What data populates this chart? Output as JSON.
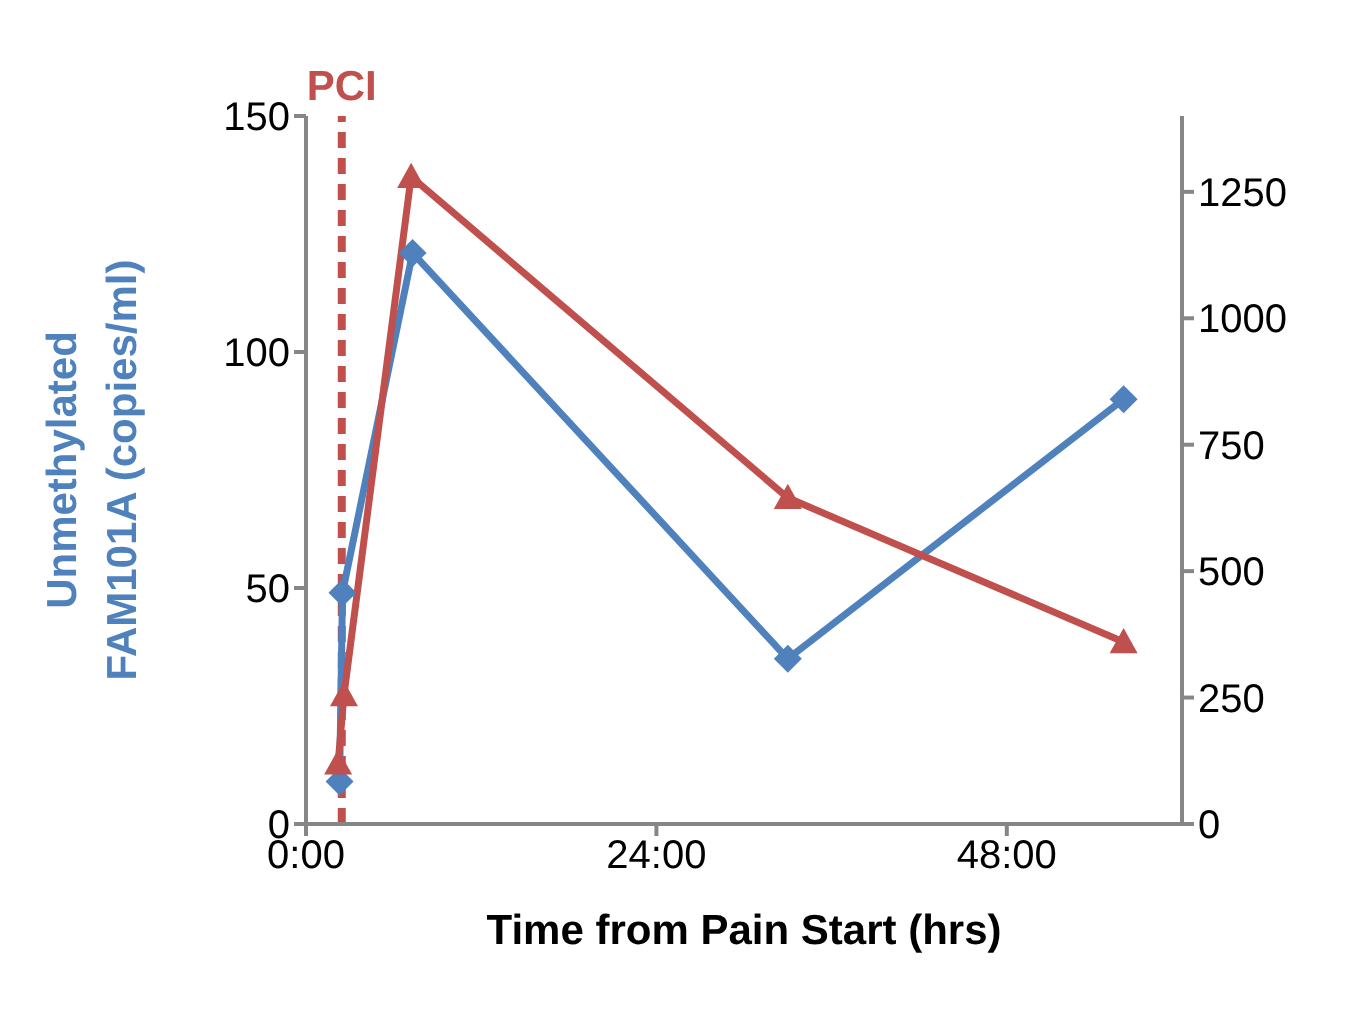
{
  "chart_data": {
    "type": "line",
    "xlabel": "Time from Pain Start (hrs)",
    "ylabel": "Unmethylated\nFAM101A (copies/ml)",
    "xlim": [
      0,
      60
    ],
    "xticks": [
      {
        "value": 0,
        "label": "0:00"
      },
      {
        "value": 24,
        "label": "24:00"
      },
      {
        "value": 48,
        "label": "48:00"
      }
    ],
    "ylim": [
      0,
      150
    ],
    "yticks": [
      0,
      50,
      100,
      150
    ],
    "y2lim": [
      0,
      1400
    ],
    "y2ticks": [
      0,
      250,
      500,
      750,
      1000,
      1250
    ],
    "series": [
      {
        "color": "#4f81bd",
        "marker": "diamond",
        "x": [
          2.3,
          2.5,
          7.3,
          33,
          56
        ],
        "values": [
          9,
          49,
          121,
          35,
          90
        ]
      },
      {
        "color": "#c0504d",
        "marker": "triangle",
        "axis": "y2",
        "x": [
          2.2,
          2.6,
          7.2,
          33,
          56
        ],
        "values": [
          120,
          255,
          1280,
          645,
          360
        ]
      }
    ],
    "ref_lines": [
      {
        "axis": "x",
        "value": 2.45,
        "label": "PCI",
        "color": "#c0504d",
        "line_style": "dashed"
      }
    ],
    "line_style": "solid"
  }
}
